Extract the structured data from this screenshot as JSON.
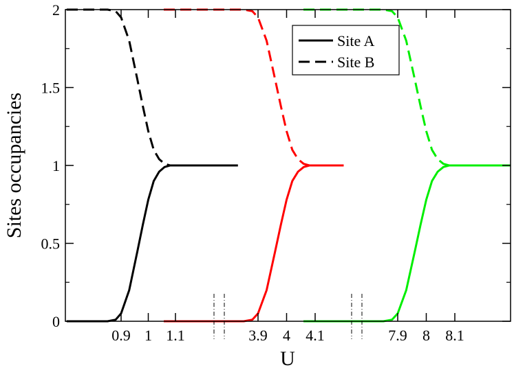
{
  "chart_data": {
    "type": "line",
    "xlabel": "U",
    "ylabel": "Sites occupancies",
    "ylim": [
      0,
      2
    ],
    "grid": false,
    "legend_position": "top-right",
    "legend": [
      {
        "label": "Site A",
        "style": "solid"
      },
      {
        "label": "Site B",
        "style": "dashed"
      }
    ],
    "y_ticks": [
      "0",
      "0.5",
      "1",
      "1.5",
      "2"
    ],
    "break_marks": 2,
    "segments": [
      {
        "color": "#000000",
        "x_ticks": [
          "0.9",
          "1",
          "1.1"
        ],
        "x_range": [
          0.7,
          1.33
        ],
        "series": [
          {
            "name": "Site A",
            "style": "solid",
            "x": [
              0.7,
              0.85,
              0.88,
              0.9,
              0.93,
              0.96,
              0.98,
              1.0,
              1.02,
              1.04,
              1.06,
              1.08,
              1.1,
              1.15,
              1.2,
              1.33
            ],
            "y": [
              0,
              0,
              0.01,
              0.05,
              0.2,
              0.45,
              0.62,
              0.78,
              0.9,
              0.96,
              0.99,
              1.0,
              1.0,
              1.0,
              1.0,
              1.0
            ]
          },
          {
            "name": "Site B",
            "style": "dashed",
            "x": [
              0.7,
              0.85,
              0.88,
              0.9,
              0.93,
              0.96,
              0.98,
              1.0,
              1.02,
              1.04,
              1.06,
              1.08,
              1.1
            ],
            "y": [
              2,
              2,
              1.99,
              1.95,
              1.8,
              1.55,
              1.38,
              1.22,
              1.1,
              1.04,
              1.01,
              1.0,
              1.0
            ]
          }
        ]
      },
      {
        "color": "#ff0000",
        "x_ticks": [
          "3.9",
          "4",
          "4.1"
        ],
        "x_range": [
          3.57,
          4.2
        ],
        "series": [
          {
            "name": "Site A",
            "style": "solid",
            "x": [
              3.57,
              3.85,
              3.88,
              3.9,
              3.93,
              3.96,
              3.98,
              4.0,
              4.02,
              4.04,
              4.06,
              4.08,
              4.1,
              4.15,
              4.2
            ],
            "y": [
              0,
              0,
              0.01,
              0.05,
              0.2,
              0.45,
              0.62,
              0.78,
              0.9,
              0.96,
              0.99,
              1.0,
              1.0,
              1.0,
              1.0
            ]
          },
          {
            "name": "Site B",
            "style": "dashed",
            "x": [
              3.57,
              3.85,
              3.88,
              3.9,
              3.93,
              3.96,
              3.98,
              4.0,
              4.02,
              4.04,
              4.06,
              4.08,
              4.1
            ],
            "y": [
              2,
              2,
              1.99,
              1.95,
              1.8,
              1.55,
              1.38,
              1.22,
              1.1,
              1.04,
              1.01,
              1.0,
              1.0
            ]
          }
        ]
      },
      {
        "color": "#00ee00",
        "x_ticks": [
          "7.9",
          "8",
          "8.1"
        ],
        "x_range": [
          7.57,
          8.3
        ],
        "series": [
          {
            "name": "Site A",
            "style": "solid",
            "x": [
              7.57,
              7.85,
              7.88,
              7.9,
              7.93,
              7.96,
              7.98,
              8.0,
              8.02,
              8.04,
              8.06,
              8.08,
              8.1,
              8.15,
              8.2,
              8.3
            ],
            "y": [
              0,
              0,
              0.01,
              0.05,
              0.2,
              0.45,
              0.62,
              0.78,
              0.9,
              0.96,
              0.99,
              1.0,
              1.0,
              1.0,
              1.0,
              1.0
            ]
          },
          {
            "name": "Site B",
            "style": "dashed",
            "x": [
              7.57,
              7.85,
              7.88,
              7.9,
              7.93,
              7.96,
              7.98,
              8.0,
              8.02,
              8.04,
              8.06,
              8.08,
              8.1
            ],
            "y": [
              2,
              2,
              1.99,
              1.95,
              1.8,
              1.55,
              1.38,
              1.22,
              1.1,
              1.04,
              1.01,
              1.0,
              1.0
            ]
          }
        ]
      }
    ]
  }
}
